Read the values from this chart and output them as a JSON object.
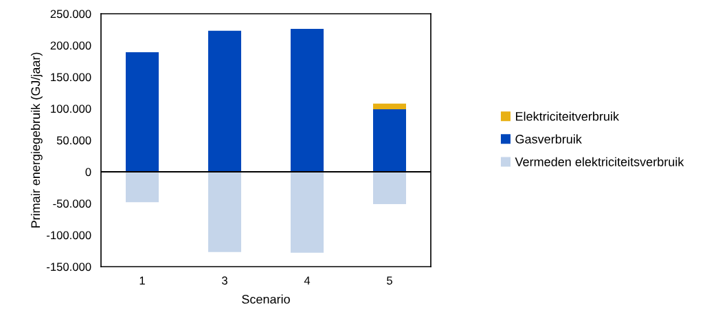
{
  "chart_data": {
    "type": "bar",
    "stacked": true,
    "xlabel": "Scenario",
    "ylabel": "Primair energiegebruik (GJ/jaar)",
    "categories": [
      "1",
      "3",
      "4",
      "5"
    ],
    "series": [
      {
        "name": "Vermeden elektriciteitsverbruik",
        "color": "#c5d5ea",
        "values": [
          -48000,
          -127000,
          -128000,
          -51000
        ]
      },
      {
        "name": "Gasverbruik",
        "color": "#0047bb",
        "values": [
          189000,
          223000,
          226000,
          99000
        ]
      },
      {
        "name": "Elektriciteitverbruik",
        "color": "#e8b014",
        "values": [
          0,
          0,
          0,
          9000
        ]
      }
    ],
    "ylim": [
      -150000,
      250000
    ],
    "yticks": [
      {
        "value": -150000,
        "label": "-150.000"
      },
      {
        "value": -100000,
        "label": "-100.000"
      },
      {
        "value": -50000,
        "label": "-50.000"
      },
      0,
      {
        "value": 50000,
        "label": "50.000"
      },
      {
        "value": 100000,
        "label": "100.000"
      },
      {
        "value": 150000,
        "label": "150.000"
      },
      {
        "value": 200000,
        "label": "200.000"
      },
      {
        "value": 250000,
        "label": "250.000"
      }
    ],
    "ref_lines": [
      {
        "axis": "y",
        "value": 0,
        "color": "#000000"
      }
    ],
    "grid": false,
    "legend": "right"
  }
}
